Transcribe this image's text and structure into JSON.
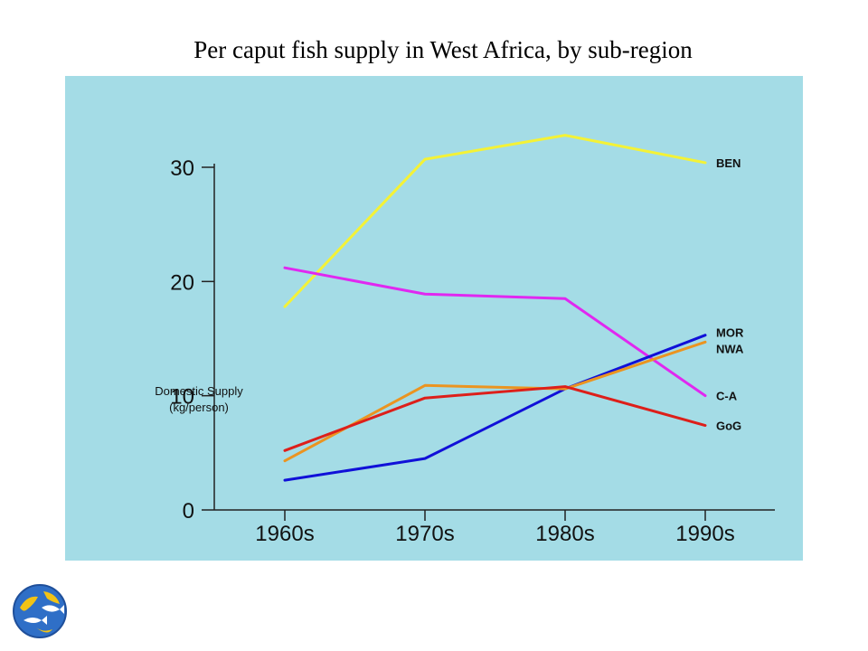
{
  "slide": {
    "title": "Per caput fish supply in West Africa, by  sub-region"
  },
  "chart_data": {
    "type": "line",
    "title": "Per caput fish supply in West Africa, by  sub-region",
    "xlabel": "",
    "ylabel_line1": "Domestic Supply",
    "ylabel_line2": "(kg/person)",
    "categories": [
      "1960s",
      "1970s",
      "1980s",
      "1990s"
    ],
    "ylim": [
      0,
      30
    ],
    "yticks": [
      0,
      10,
      20,
      30
    ],
    "grid": false,
    "legend": "labels at line ends (right)",
    "background": "#a4dce6",
    "series": [
      {
        "name": "BEN",
        "color": "#f4f236",
        "values": [
          17.8,
          30.7,
          32.8,
          30.4
        ]
      },
      {
        "name": "C-A",
        "color": "#e028f0",
        "values": [
          21.2,
          18.9,
          18.5,
          10.0
        ]
      },
      {
        "name": "MOR",
        "color": "#1010d8",
        "values": [
          2.6,
          4.5,
          10.6,
          15.3
        ]
      },
      {
        "name": "NWA",
        "color": "#eb9420",
        "values": [
          4.3,
          10.9,
          10.6,
          14.7
        ]
      },
      {
        "name": "GoG",
        "color": "#dd1f1a",
        "values": [
          5.2,
          9.8,
          10.8,
          7.4
        ]
      }
    ]
  },
  "logo": {
    "icon": "fao-globe-fish-icon"
  }
}
